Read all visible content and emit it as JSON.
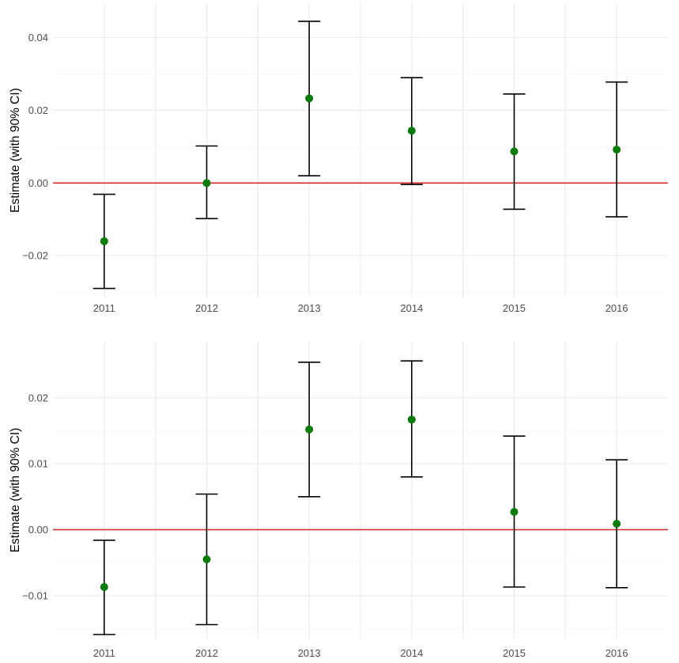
{
  "chart_data": [
    {
      "type": "errorbar",
      "title": "",
      "xlabel": "",
      "ylabel": "Estimate (with 90% CI)",
      "categories": [
        "2011",
        "2012",
        "2013",
        "2014",
        "2015",
        "2016"
      ],
      "values": [
        -0.016,
        0.0,
        0.0233,
        0.0144,
        0.0087,
        0.0092
      ],
      "lower": [
        -0.029,
        -0.0098,
        0.002,
        -0.0004,
        -0.0072,
        -0.0093
      ],
      "upper": [
        -0.0031,
        0.0102,
        0.0445,
        0.029,
        0.0245,
        0.0278
      ],
      "ylim": [
        -0.0315,
        0.0495
      ],
      "yticks": [
        -0.02,
        0.0,
        0.02,
        0.04
      ],
      "ytick_labels": [
        "−0.02",
        "0.00",
        "0.02",
        "0.04"
      ],
      "reference_line": 0,
      "grid": true
    },
    {
      "type": "errorbar",
      "title": "",
      "xlabel": "",
      "ylabel": "Estimate (with 90% CI)",
      "categories": [
        "2011",
        "2012",
        "2013",
        "2014",
        "2015",
        "2016"
      ],
      "values": [
        -0.0087,
        -0.0045,
        0.0152,
        0.0167,
        0.0027,
        0.0009
      ],
      "lower": [
        -0.0159,
        -0.0144,
        0.005,
        0.008,
        -0.0087,
        -0.0088
      ],
      "upper": [
        -0.0016,
        0.0054,
        0.0254,
        0.0256,
        0.0142,
        0.0106
      ],
      "ylim": [
        -0.0165,
        0.0285
      ],
      "yticks": [
        -0.01,
        0.0,
        0.01,
        0.02
      ],
      "ytick_labels": [
        "−0.01",
        "0.00",
        "0.01",
        "0.02"
      ],
      "reference_line": 0,
      "grid": true
    }
  ],
  "colors": {
    "point": "#0a7a0a",
    "errorbar": "#000000",
    "reference_line": "#d62728",
    "grid": "#ebebeb"
  }
}
